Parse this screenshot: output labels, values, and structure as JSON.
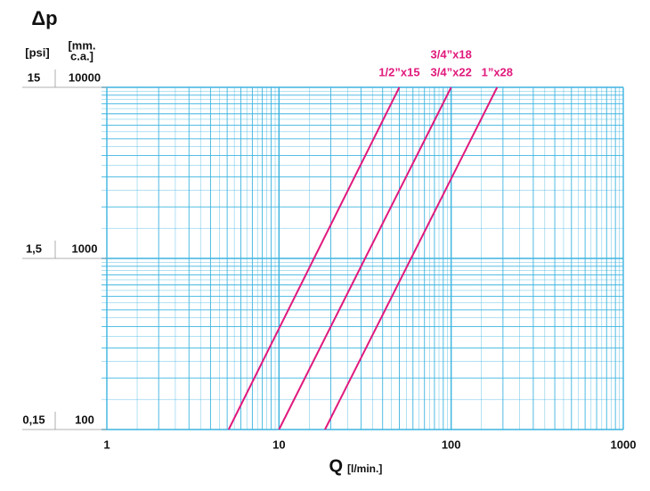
{
  "chart_data": {
    "type": "line",
    "log_x": true,
    "log_y": true,
    "grid": true,
    "y_title": "Δp",
    "y_unit": "[psi]",
    "y2_unit": [
      "[mm.",
      "c.a.]"
    ],
    "x_title": "Q",
    "x_unit": "[l/min.]",
    "xlim": [
      1,
      1000
    ],
    "xticks": [
      1,
      10,
      100,
      1000
    ],
    "ylim": [
      100,
      10000
    ],
    "yticks": [
      100,
      1000,
      10000
    ],
    "y2lim": [
      0.15,
      15
    ],
    "y2ticks": [
      {
        "value": 0.15,
        "label": "0,15"
      },
      {
        "value": 1.5,
        "label": "1,5"
      },
      15
    ],
    "series": [
      {
        "labels": [
          "1/2”x15"
        ],
        "color": "#e0197d",
        "x": [
          5.1,
          50
        ],
        "values": [
          100,
          10000
        ]
      },
      {
        "labels": [
          "3/4”x18",
          "3/4”x22"
        ],
        "color": "#e0197d",
        "x": [
          10,
          100
        ],
        "values": [
          100,
          10000
        ]
      },
      {
        "labels": [
          "1”x28"
        ],
        "color": "#e0197d",
        "x": [
          18.5,
          185
        ],
        "values": [
          100,
          10000
        ]
      }
    ]
  }
}
